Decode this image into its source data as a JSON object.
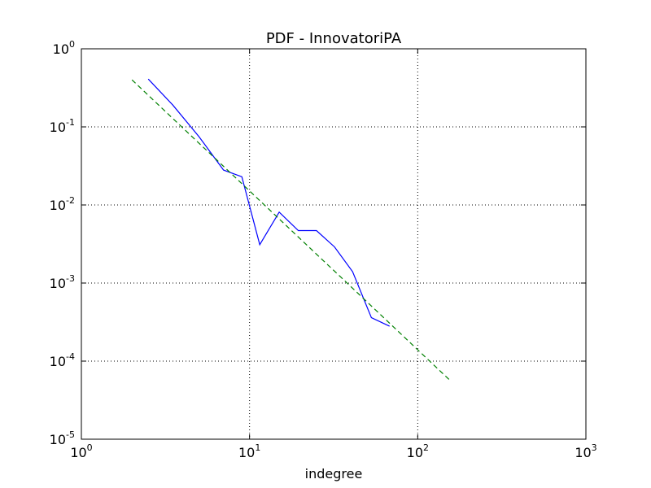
{
  "chart_data": {
    "type": "line",
    "title": "PDF - InnovatoriPA",
    "xlabel": "indegree",
    "ylabel": "",
    "x_scale": "log",
    "y_scale": "log",
    "xlim": [
      1,
      1000
    ],
    "ylim": [
      1e-05,
      1
    ],
    "grid": true,
    "x_ticks": [
      {
        "base": "10",
        "exp": "0",
        "value": 1
      },
      {
        "base": "10",
        "exp": "1",
        "value": 10
      },
      {
        "base": "10",
        "exp": "2",
        "value": 100
      },
      {
        "base": "10",
        "exp": "3",
        "value": 1000
      }
    ],
    "y_ticks": [
      {
        "base": "10",
        "exp": "0",
        "value": 1
      },
      {
        "base": "10",
        "exp": "-1",
        "value": 0.1
      },
      {
        "base": "10",
        "exp": "-2",
        "value": 0.01
      },
      {
        "base": "10",
        "exp": "-3",
        "value": 0.001
      },
      {
        "base": "10",
        "exp": "-4",
        "value": 0.0001
      },
      {
        "base": "10",
        "exp": "-5",
        "value": 1e-05
      }
    ],
    "series": [
      {
        "style": "solid",
        "color": "#0000ff",
        "x": [
          2.5,
          3.5,
          5.0,
          7.0,
          9.0,
          11.5,
          15.0,
          19.5,
          25.0,
          32.0,
          41.0,
          53.0,
          68.0
        ],
        "y": [
          0.41,
          0.19,
          0.075,
          0.028,
          0.023,
          0.0031,
          0.0081,
          0.0047,
          0.0047,
          0.0029,
          0.0014,
          0.00036,
          0.00028
        ]
      },
      {
        "style": "dashed",
        "color": "#008000",
        "x": [
          2.0,
          158.0
        ],
        "y": [
          0.4,
          5.5e-05
        ]
      }
    ]
  }
}
